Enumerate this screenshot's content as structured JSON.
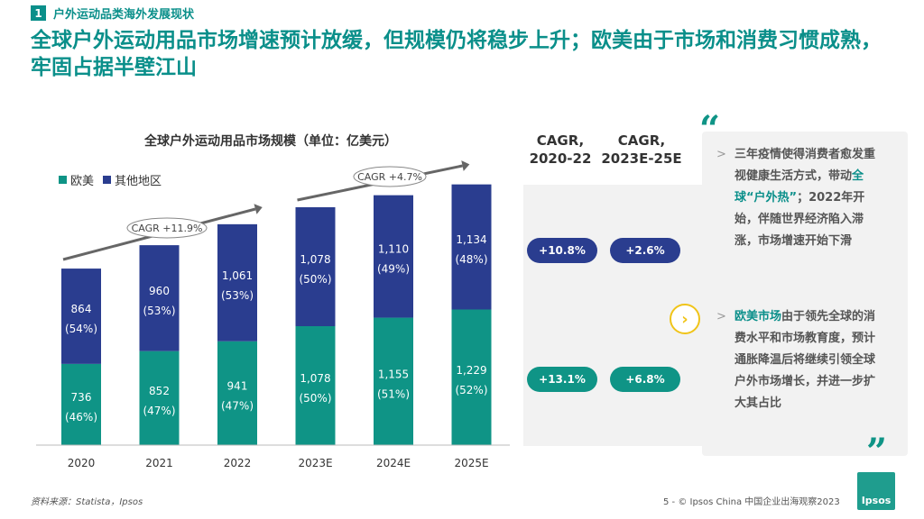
{
  "section": {
    "number": "1",
    "label": "户外运动品类海外发展现状"
  },
  "headline": "全球户外运动用品市场增速预计放缓，但规模仍将稳步上升；欧美由于市场和消费习惯成熟，牢固占据半壁江山",
  "colors": {
    "europe_us": "#0f9486",
    "other": "#2a3d8f",
    "accent": "#0a8f8a",
    "chevron": "#f0c419"
  },
  "chart_data": {
    "type": "bar",
    "stacked": true,
    "title": "全球户外运动用品市场规模（单位：亿美元）",
    "categories": [
      "2020",
      "2021",
      "2022",
      "2023E",
      "2024E",
      "2025E"
    ],
    "series": [
      {
        "name": "欧美",
        "values": [
          736,
          852,
          941,
          1078,
          1155,
          1229
        ],
        "labels": [
          "(46%)",
          "(47%)",
          "(47%)",
          "(50%)",
          "(51%)",
          "(52%)"
        ]
      },
      {
        "name": "其他地区",
        "values": [
          864,
          960,
          1061,
          1078,
          1110,
          1134
        ],
        "labels": [
          "(54%)",
          "(53%)",
          "(53%)",
          "(50%)",
          "(49%)",
          "(48%)"
        ]
      }
    ],
    "ylim": [
      0,
      2450
    ],
    "annotations": [
      {
        "text": "CAGR +11.9%",
        "from": "2020",
        "to": "2022"
      },
      {
        "text": "CAGR +4.7%",
        "from": "2023E",
        "to": "2025E"
      }
    ]
  },
  "cagr": {
    "col1_header": [
      "CAGR,",
      "2020-22"
    ],
    "col2_header": [
      "CAGR,",
      "2023E-25E"
    ],
    "other_2020_22": "+10.8%",
    "other_2023_25": "+2.6%",
    "eu_2020_22": "+13.1%",
    "eu_2023_25": "+6.8%"
  },
  "insights": {
    "bullet1": {
      "pre": "三年疫情使得消费者愈发重视健康生活方式，带动",
      "highlight": "全球“户外热”",
      "post": "；2022年开始，伴随世界经济陷入滞涨，市场增速开始下滑"
    },
    "bullet2": {
      "highlight": "欧美市场",
      "post": "由于领先全球的消费水平和市场教育度，预计通胀降温后将继续引领全球户外市场增长，并进一步扩大其占比"
    }
  },
  "source": "资料来源：Statista，Ipsos",
  "footer": "5 - © Ipsos China 中国企业出海观察2023",
  "logo_text": "Ipsos"
}
